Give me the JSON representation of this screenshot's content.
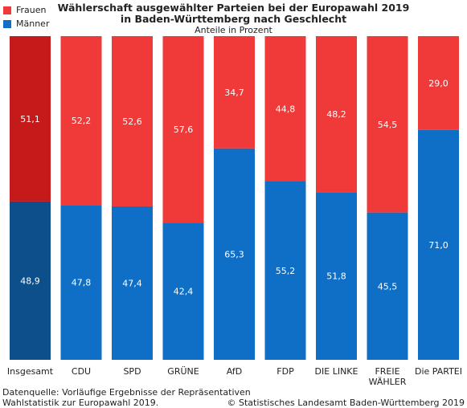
{
  "title_line1": "Wählerschaft ausgewählter Parteien bei der Europawahl 2019",
  "title_line2": "in Baden-Württemberg nach Geschlecht",
  "subtitle": "Anteile in Prozent",
  "legend": [
    {
      "label": "Frauen",
      "color": "#f03a3a"
    },
    {
      "label": "Männer",
      "color": "#0f6fc6"
    }
  ],
  "footer": {
    "source_line1": "Datenquelle: Vorläufige Ergebnisse der Repräsentativen",
    "source_line2": "Wahlstatistik zur Europawahl 2019.",
    "copyright": "© Statistisches Landesamt Baden-Württemberg 2019"
  },
  "colors": {
    "frauen": "#f03a3a",
    "maenner": "#0f6fc6",
    "frauen_total": "#c41a1a",
    "maenner_total": "#0d4f8b"
  },
  "chart_data": {
    "type": "bar",
    "stacked": true,
    "categories": [
      "Insgesamt",
      "CDU",
      "SPD",
      "GRÜNE",
      "AfD",
      "FDP",
      "DIE LINKE",
      "FREIE WÄHLER",
      "Die PARTEI"
    ],
    "category_lines": [
      [
        "Insgesamt"
      ],
      [
        "CDU"
      ],
      [
        "SPD"
      ],
      [
        "GRÜNE"
      ],
      [
        "AfD"
      ],
      [
        "FDP"
      ],
      [
        "DIE LINKE"
      ],
      [
        "FREIE",
        "WÄHLER"
      ],
      [
        "Die PARTEI"
      ]
    ],
    "series": [
      {
        "name": "Männer",
        "values": [
          48.9,
          47.8,
          47.4,
          42.4,
          65.3,
          55.2,
          51.8,
          45.5,
          71.0
        ],
        "labels": [
          "48,9",
          "47,8",
          "47,4",
          "42,4",
          "65,3",
          "55,2",
          "51,8",
          "45,5",
          "71,0"
        ]
      },
      {
        "name": "Frauen",
        "values": [
          51.1,
          52.2,
          52.6,
          57.6,
          34.7,
          44.8,
          48.2,
          54.5,
          29.0
        ],
        "labels": [
          "51,1",
          "52,2",
          "52,6",
          "57,6",
          "34,7",
          "44,8",
          "48,2",
          "54,5",
          "29,0"
        ]
      }
    ],
    "ylim": [
      0,
      100
    ],
    "grid": false,
    "legend_position": "top-left"
  }
}
